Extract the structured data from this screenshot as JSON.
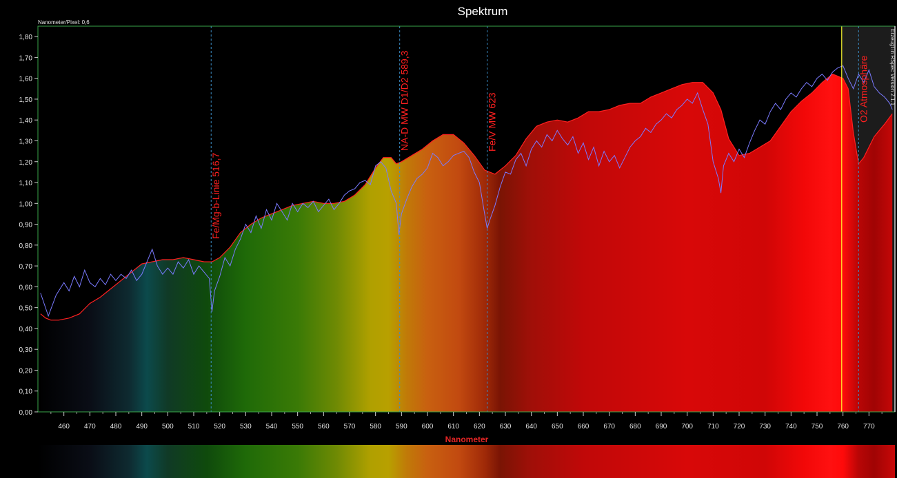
{
  "chart_data": {
    "type": "area",
    "title": "Spektrum",
    "subtitle": "Nanometer/Pixel: 0,6",
    "xlabel": "Nanometer",
    "ylabel": "",
    "watermark": "Erzeugt in RSpec Version 2.1.1",
    "xlim": [
      450,
      780
    ],
    "ylim": [
      0,
      1.85
    ],
    "grid": false,
    "x_ticks": [
      460,
      470,
      480,
      490,
      500,
      510,
      520,
      530,
      540,
      550,
      560,
      570,
      580,
      590,
      600,
      610,
      620,
      630,
      640,
      650,
      660,
      670,
      680,
      690,
      700,
      710,
      720,
      730,
      740,
      750,
      760,
      770
    ],
    "y_ticks": [
      0,
      0.1,
      0.2,
      0.3,
      0.4,
      0.5,
      0.6,
      0.7,
      0.8,
      0.9,
      1.0,
      1.1,
      1.2,
      1.3,
      1.4,
      1.5,
      1.6,
      1.7,
      1.8
    ],
    "y_tick_labels": [
      "0,00",
      "0,10",
      "0,20",
      "0,30",
      "0,40",
      "0,50",
      "0,60",
      "0,70",
      "0,80",
      "0,90",
      "1,00",
      "1,10",
      "1,20",
      "1,30",
      "1,40",
      "1,50",
      "1,60",
      "1,70",
      "1,80"
    ],
    "series": [
      {
        "role": "filled-red-outline",
        "color": "#ff2020",
        "x": [
          451,
          453,
          455,
          458,
          462,
          466,
          470,
          474,
          478,
          482,
          486,
          490,
          494,
          498,
          502,
          506,
          510,
          514,
          517,
          520,
          524,
          528,
          532,
          536,
          540,
          544,
          548,
          552,
          556,
          560,
          564,
          568,
          572,
          576,
          580,
          583,
          586,
          588,
          590,
          594,
          598,
          602,
          606,
          610,
          614,
          618,
          622,
          626,
          630,
          634,
          638,
          642,
          646,
          650,
          654,
          658,
          662,
          666,
          670,
          674,
          678,
          682,
          686,
          690,
          694,
          698,
          702,
          706,
          710,
          713,
          716,
          720,
          724,
          728,
          732,
          736,
          740,
          744,
          748,
          752,
          756,
          760,
          762,
          764,
          766,
          768,
          772,
          776,
          779
        ],
        "y": [
          0.47,
          0.45,
          0.44,
          0.44,
          0.45,
          0.47,
          0.52,
          0.55,
          0.59,
          0.63,
          0.67,
          0.71,
          0.72,
          0.73,
          0.73,
          0.74,
          0.73,
          0.72,
          0.72,
          0.74,
          0.79,
          0.86,
          0.9,
          0.93,
          0.95,
          0.97,
          0.99,
          1.0,
          1.01,
          1.0,
          1.0,
          1.01,
          1.04,
          1.09,
          1.17,
          1.22,
          1.22,
          1.19,
          1.2,
          1.23,
          1.26,
          1.3,
          1.33,
          1.33,
          1.29,
          1.23,
          1.16,
          1.14,
          1.18,
          1.23,
          1.31,
          1.37,
          1.39,
          1.4,
          1.39,
          1.41,
          1.44,
          1.44,
          1.45,
          1.47,
          1.48,
          1.48,
          1.51,
          1.53,
          1.55,
          1.57,
          1.58,
          1.58,
          1.53,
          1.45,
          1.31,
          1.23,
          1.24,
          1.27,
          1.3,
          1.37,
          1.44,
          1.49,
          1.53,
          1.58,
          1.62,
          1.6,
          1.55,
          1.34,
          1.19,
          1.22,
          1.32,
          1.38,
          1.43
        ]
      },
      {
        "role": "reference-line",
        "color": "#7a7aff",
        "x": [
          451,
          454,
          457,
          460,
          462,
          464,
          466,
          468,
          470,
          472,
          474,
          476,
          478,
          480,
          482,
          484,
          486,
          488,
          490,
          492,
          494,
          496,
          498,
          500,
          502,
          504,
          506,
          508,
          510,
          512,
          514,
          516,
          517,
          518,
          520,
          522,
          524,
          526,
          528,
          530,
          532,
          534,
          536,
          538,
          540,
          542,
          544,
          546,
          548,
          550,
          552,
          554,
          556,
          558,
          560,
          562,
          564,
          566,
          568,
          570,
          572,
          574,
          576,
          578,
          580,
          582,
          584,
          586,
          588,
          589,
          590,
          592,
          594,
          596,
          598,
          600,
          602,
          604,
          606,
          608,
          610,
          612,
          614,
          616,
          618,
          620,
          622,
          623,
          624,
          626,
          628,
          630,
          632,
          634,
          636,
          638,
          640,
          642,
          644,
          646,
          648,
          650,
          652,
          654,
          656,
          658,
          660,
          662,
          664,
          666,
          668,
          670,
          672,
          674,
          676,
          678,
          680,
          682,
          684,
          686,
          688,
          690,
          692,
          694,
          696,
          698,
          700,
          702,
          704,
          706,
          708,
          710,
          712,
          713,
          714,
          716,
          718,
          720,
          722,
          724,
          726,
          728,
          730,
          732,
          734,
          736,
          738,
          740,
          742,
          744,
          746,
          748,
          750,
          752,
          754,
          756,
          758,
          760,
          762,
          764,
          766,
          768,
          770,
          772,
          774,
          776,
          778,
          779
        ],
        "y": [
          0.57,
          0.46,
          0.56,
          0.62,
          0.58,
          0.65,
          0.6,
          0.68,
          0.62,
          0.6,
          0.64,
          0.61,
          0.66,
          0.63,
          0.66,
          0.64,
          0.68,
          0.63,
          0.66,
          0.72,
          0.78,
          0.7,
          0.66,
          0.69,
          0.66,
          0.72,
          0.69,
          0.73,
          0.66,
          0.7,
          0.67,
          0.64,
          0.48,
          0.58,
          0.65,
          0.74,
          0.7,
          0.78,
          0.83,
          0.9,
          0.86,
          0.94,
          0.88,
          0.97,
          0.92,
          1.0,
          0.96,
          0.92,
          1.0,
          0.96,
          1.0,
          0.98,
          1.01,
          0.96,
          0.99,
          1.02,
          0.97,
          1.0,
          1.04,
          1.06,
          1.07,
          1.1,
          1.11,
          1.09,
          1.18,
          1.2,
          1.17,
          1.06,
          1.0,
          0.85,
          0.95,
          1.02,
          1.08,
          1.12,
          1.14,
          1.17,
          1.24,
          1.22,
          1.18,
          1.2,
          1.23,
          1.24,
          1.25,
          1.22,
          1.15,
          1.1,
          0.95,
          0.88,
          0.92,
          0.99,
          1.08,
          1.15,
          1.14,
          1.21,
          1.24,
          1.18,
          1.26,
          1.3,
          1.27,
          1.33,
          1.3,
          1.35,
          1.31,
          1.28,
          1.32,
          1.24,
          1.29,
          1.21,
          1.27,
          1.18,
          1.25,
          1.2,
          1.23,
          1.17,
          1.22,
          1.27,
          1.3,
          1.32,
          1.36,
          1.34,
          1.38,
          1.4,
          1.43,
          1.41,
          1.45,
          1.47,
          1.5,
          1.48,
          1.53,
          1.45,
          1.38,
          1.2,
          1.12,
          1.05,
          1.18,
          1.24,
          1.2,
          1.26,
          1.22,
          1.29,
          1.35,
          1.4,
          1.38,
          1.44,
          1.48,
          1.45,
          1.5,
          1.53,
          1.51,
          1.55,
          1.58,
          1.56,
          1.6,
          1.62,
          1.59,
          1.63,
          1.65,
          1.66,
          1.6,
          1.55,
          1.62,
          1.58,
          1.64,
          1.56,
          1.53,
          1.51,
          1.48,
          1.45
        ]
      }
    ],
    "annotations": [
      {
        "label": "Fe/Mg-b-Linie 516,7",
        "x": 516.7,
        "color": "#ff2020",
        "line_color": "#3b8fc9"
      },
      {
        "label": "NA-D MW D1/D2 589,3",
        "x": 589.3,
        "color": "#ff2020",
        "line_color": "#3b8fc9"
      },
      {
        "label": "Fe/V MW 623",
        "x": 623,
        "color": "#ff2020",
        "line_color": "#3b8fc9"
      },
      {
        "label": "O2 Atmosphäre",
        "x": 766,
        "color": "#ff2020",
        "line_color": "#3b8fc9"
      }
    ],
    "marker_line": {
      "x": 759.5,
      "color": "#ffff33"
    },
    "colors": {
      "background": "#000000",
      "plot_border": "#3aa64a",
      "fill_outline": "#ff2020",
      "reference": "#7a7aff",
      "axis_text": "#e6e6e6",
      "xlabel": "#e42525"
    }
  }
}
